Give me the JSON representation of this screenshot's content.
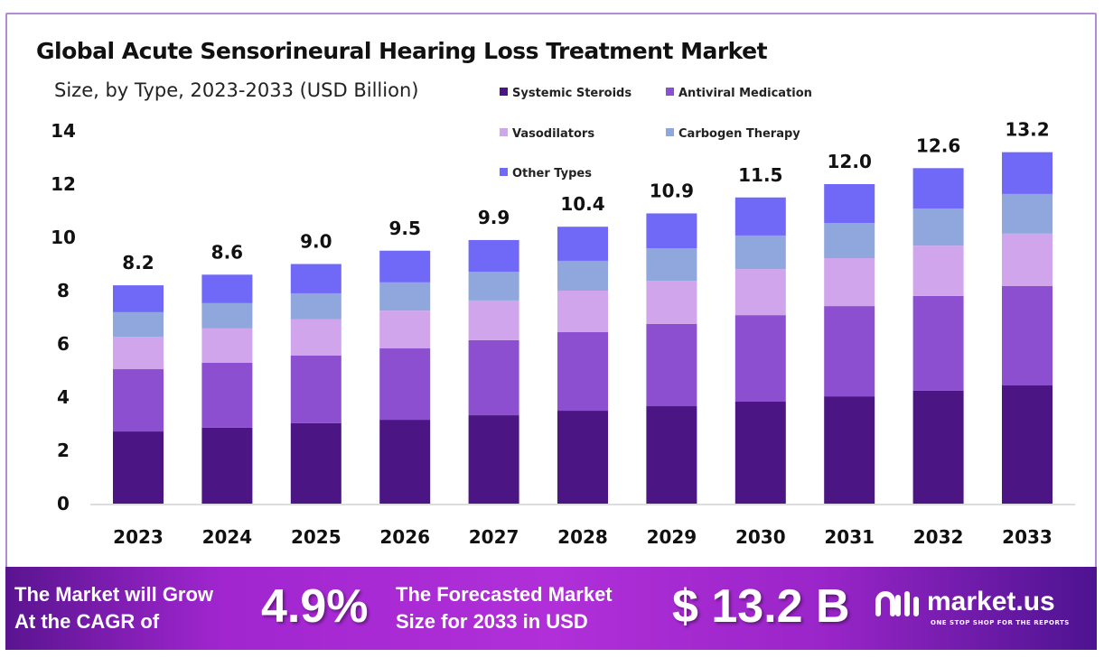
{
  "chart_data": {
    "type": "bar",
    "stacked": true,
    "title": "Global Acute Sensorineural Hearing Loss Treatment Market",
    "subtitle": "Size, by Type, 2023-2033 (USD Billion)",
    "xlabel": "",
    "ylabel": "",
    "ylim": [
      0,
      14
    ],
    "yticks": [
      0,
      2,
      4,
      6,
      8,
      10,
      12,
      14
    ],
    "grid": false,
    "legend_position": "top-right",
    "categories": [
      "2023",
      "2024",
      "2025",
      "2026",
      "2027",
      "2028",
      "2029",
      "2030",
      "2031",
      "2032",
      "2033"
    ],
    "totals": [
      "8.2",
      "8.6",
      "9.0",
      "9.5",
      "9.9",
      "10.4",
      "10.9",
      "11.5",
      "12.0",
      "12.6",
      "13.2"
    ],
    "series": [
      {
        "name": "Systemic Steroids",
        "color": "#4b1583",
        "values": [
          2.71,
          2.85,
          3.02,
          3.15,
          3.32,
          3.49,
          3.66,
          3.83,
          4.03,
          4.24,
          4.44
        ]
      },
      {
        "name": "Antiviral Medication",
        "color": "#8b4fd0",
        "values": [
          2.34,
          2.44,
          2.54,
          2.68,
          2.82,
          2.95,
          3.09,
          3.25,
          3.39,
          3.56,
          3.73
        ]
      },
      {
        "name": "Vasodilators",
        "color": "#d0a5ec",
        "values": [
          1.22,
          1.29,
          1.36,
          1.42,
          1.49,
          1.56,
          1.62,
          1.73,
          1.8,
          1.89,
          1.97
        ]
      },
      {
        "name": "Carbogen Therapy",
        "color": "#8fa7dc",
        "values": [
          0.92,
          0.95,
          0.98,
          1.06,
          1.08,
          1.12,
          1.22,
          1.26,
          1.32,
          1.39,
          1.49
        ]
      },
      {
        "name": "Other Types",
        "color": "#7068f7",
        "values": [
          1.01,
          1.07,
          1.1,
          1.19,
          1.19,
          1.28,
          1.31,
          1.43,
          1.46,
          1.52,
          1.57
        ]
      }
    ]
  },
  "banner": {
    "cagr_label": [
      "The Market will Grow",
      "At the CAGR of"
    ],
    "cagr_value": "4.9%",
    "forecast_label": [
      "The Forecasted Market",
      "Size for 2033 in USD"
    ],
    "forecast_value": "$ 13.2 B",
    "logo_name": "market.us",
    "logo_tagline": "ONE STOP SHOP FOR THE REPORTS"
  }
}
